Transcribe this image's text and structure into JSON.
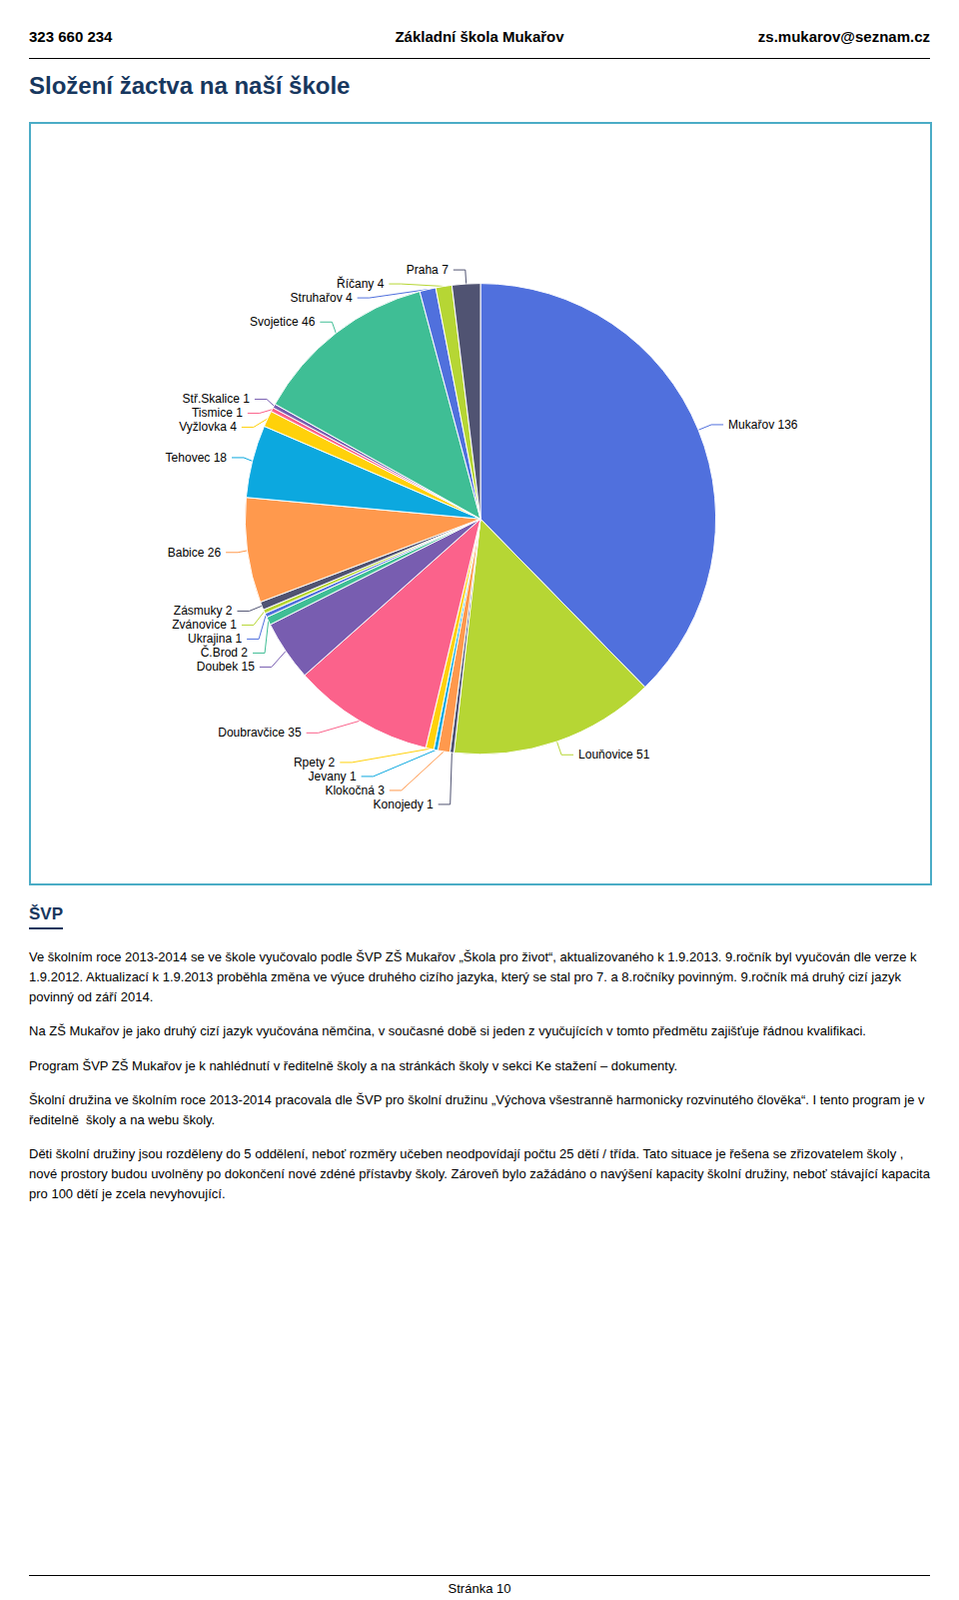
{
  "chart_data": {
    "type": "pie",
    "title": "Složení žactva na naší škole",
    "categories": [
      "Mukařov 136",
      "Louňovice 51",
      "Konojedy 1",
      "Klokočná 3",
      "Jevany 1",
      "Rpety 2",
      "Doubravčice 35",
      "Doubek 15",
      "Č.Brod 2",
      "Ukrajina 1",
      "Zvánovice 1",
      "Zásmuky 2",
      "Babice 26",
      "Tehovec 18",
      "Vyžlovka 4",
      "Tismice 1",
      "Stř.Skalice 1",
      "Svojetice 46",
      "Struhařov 4",
      "Říčany 4",
      "Praha 7"
    ],
    "values": [
      136,
      51,
      1,
      3,
      1,
      2,
      35,
      15,
      2,
      1,
      1,
      2,
      26,
      18,
      4,
      1,
      1,
      46,
      4,
      4,
      7
    ],
    "annotations": [
      "323 660 234",
      "Základní škola Mukařov",
      "zs.mukarov@seznam.cz",
      "ŠVP",
      "Ve školním roce 2013-2014 se ve škole vyučovalo podle ŠVP ZŠ Mukařov „Škola pro život“, aktualizovaného k 1.9.2013. 9.ročník byl vyučován dle verze k 1.9.2012. Aktualizací k 1.9.2013 proběhla změna ve výuce druhého cizího jazyka, který se stal pro 7. a 8.ročníky povinným. 9.ročník má druhý cizí jazyk povinný od září 2014.",
      "Na ZŠ Mukařov je jako druhý cizí jazyk vyučována němčina, v současné době si jeden z vyučujících v tomto předmětu zajišťuje řádnou kvalifikaci.",
      "Program ŠVP ZŠ Mukařov je k nahlédnutí v ředitelně školy a na stránkách školy v sekci Ke stažení – dokumenty.",
      "Školní družina ve školním roce 2013-2014 pracovala dle ŠVP pro školní družinu „Výchova všestranně harmonicky rozvinutého člověka“. I tento program je v ředitelně  školy a na webu školy.",
      "Děti školní družiny jsou rozděleny do 5 oddělení, neboť rozměry učeben neodpovídají počtu 25 dětí / třída. Tato situace je řešena se zřizovatelem školy , nové prostory budou uvolněny po dokončení nové zdéné přístavby školy. Zároveň bylo zažádáno o navýšení kapacity školní družiny, neboť stávající kapacita pro 100 dětí je zcela nevyhovující.",
      "Stránka 10"
    ]
  }
}
